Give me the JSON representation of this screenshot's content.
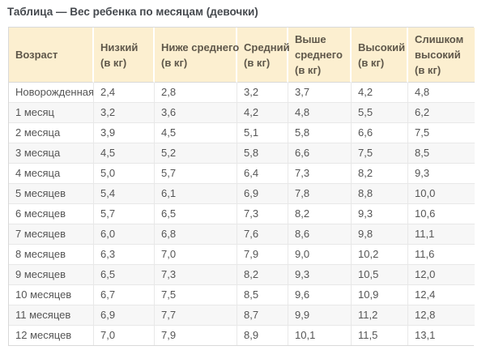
{
  "page": {
    "title": "Таблица — Вес ребенка по месяцам (девочки)"
  },
  "colors": {
    "header_bg": "#fcefd0",
    "header_text": "#5e574a",
    "title_text": "#45494e",
    "body_text": "#555555",
    "alt_row_bg": "#f7f7f7",
    "border": "#e8e8e8",
    "outer_border": "#d9d9d9"
  },
  "table": {
    "columns": [
      "Возраст",
      "Низкий\n(в кг)",
      "Ниже среднего\n(в кг)",
      "Средний\n(в кг)",
      "Выше\nсреднего\n(в кг)",
      "Высокий\n(в кг)",
      "Слишком\nвысокий\n(в кг)"
    ],
    "rows": [
      {
        "age": "Новорожденная",
        "values": [
          "2,4",
          "2,8",
          "3,2",
          "3,7",
          "4,2",
          "4,8"
        ]
      },
      {
        "age": "1 месяц",
        "values": [
          "3,2",
          "3,6",
          "4,2",
          "4,8",
          "5,5",
          "6,2"
        ]
      },
      {
        "age": "2 месяца",
        "values": [
          "3,9",
          "4,5",
          "5,1",
          "5,8",
          "6,6",
          "7,5"
        ]
      },
      {
        "age": "3 месяца",
        "values": [
          "4,5",
          "5,2",
          "5,8",
          "6,6",
          "7,5",
          "8,5"
        ]
      },
      {
        "age": "4 месяца",
        "values": [
          "5,0",
          "5,7",
          "6,4",
          "7,3",
          "8,2",
          "9,3"
        ]
      },
      {
        "age": "5 месяцев",
        "values": [
          "5,4",
          "6,1",
          "6,9",
          "7,8",
          "8,8",
          "10,0"
        ]
      },
      {
        "age": "6 месяцев",
        "values": [
          "5,7",
          "6,5",
          "7,3",
          "8,2",
          "9,3",
          "10,6"
        ]
      },
      {
        "age": "7 месяцев",
        "values": [
          "6,0",
          "6,8",
          "7,6",
          "8,6",
          "9,8",
          "11,1"
        ]
      },
      {
        "age": "8 месяцев",
        "values": [
          "6,3",
          "7,0",
          "7,9",
          "9,0",
          "10,2",
          "11,6"
        ]
      },
      {
        "age": "9 месяцев",
        "values": [
          "6,5",
          "7,3",
          "8,2",
          "9,3",
          "10,5",
          "12,0"
        ]
      },
      {
        "age": "10 месяцев",
        "values": [
          "6,7",
          "7,5",
          "8,5",
          "9,6",
          "10,9",
          "12,4"
        ]
      },
      {
        "age": "11 месяцев",
        "values": [
          "6,9",
          "7,7",
          "8,7",
          "9,9",
          "11,2",
          "12,8"
        ]
      },
      {
        "age": "12 месяцев",
        "values": [
          "7,0",
          "7,9",
          "8,9",
          "10,1",
          "11,5",
          "13,1"
        ]
      }
    ]
  },
  "chart_data": {
    "type": "table",
    "title": "Таблица — Вес ребенка по месяцам (девочки)",
    "columns": [
      "Возраст",
      "Низкий (в кг)",
      "Ниже среднего (в кг)",
      "Средний (в кг)",
      "Выше среднего (в кг)",
      "Высокий (в кг)",
      "Слишком высокий (в кг)"
    ],
    "rows": [
      [
        "Новорожденная",
        "2,4",
        "2,8",
        "3,2",
        "3,7",
        "4,2",
        "4,8"
      ],
      [
        "1 месяц",
        "3,2",
        "3,6",
        "4,2",
        "4,8",
        "5,5",
        "6,2"
      ],
      [
        "2 месяца",
        "3,9",
        "4,5",
        "5,1",
        "5,8",
        "6,6",
        "7,5"
      ],
      [
        "3 месяца",
        "4,5",
        "5,2",
        "5,8",
        "6,6",
        "7,5",
        "8,5"
      ],
      [
        "4 месяца",
        "5,0",
        "5,7",
        "6,4",
        "7,3",
        "8,2",
        "9,3"
      ],
      [
        "5 месяцев",
        "5,4",
        "6,1",
        "6,9",
        "7,8",
        "8,8",
        "10,0"
      ],
      [
        "6 месяцев",
        "5,7",
        "6,5",
        "7,3",
        "8,2",
        "9,3",
        "10,6"
      ],
      [
        "7 месяцев",
        "6,0",
        "6,8",
        "7,6",
        "8,6",
        "9,8",
        "11,1"
      ],
      [
        "8 месяцев",
        "6,3",
        "7,0",
        "7,9",
        "9,0",
        "10,2",
        "11,6"
      ],
      [
        "9 месяцев",
        "6,5",
        "7,3",
        "8,2",
        "9,3",
        "10,5",
        "12,0"
      ],
      [
        "10 месяцев",
        "6,7",
        "7,5",
        "8,5",
        "9,6",
        "10,9",
        "12,4"
      ],
      [
        "11 месяцев",
        "6,9",
        "7,7",
        "8,7",
        "9,9",
        "11,2",
        "12,8"
      ],
      [
        "12 месяцев",
        "7,0",
        "7,9",
        "8,9",
        "10,1",
        "11,5",
        "13,1"
      ]
    ]
  }
}
